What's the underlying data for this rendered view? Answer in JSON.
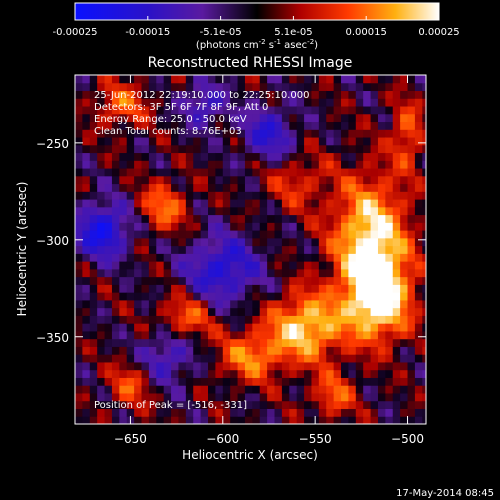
{
  "chart_data": {
    "type": "heatmap",
    "title": "Reconstructed RHESSI Image",
    "colorbar": {
      "ticks": [
        "-0.00025",
        "-0.00015",
        "-5.1e-05",
        "5.1e-05",
        "0.00015",
        "0.00025"
      ],
      "label_main": "(photons cm",
      "label_exp1": "-2",
      "label_mid": " s",
      "label_exp2": "-1",
      "label_end": " asec",
      "label_exp3": "-2",
      "label_close": ")",
      "range": [
        -0.00025,
        0.00025
      ],
      "colors": [
        "#1a1aff",
        "#2a10cc",
        "#5a1aa8",
        "#000000",
        "#c80000",
        "#ff6a00",
        "#ffd020",
        "#ffffff"
      ]
    },
    "xlabel": "Heliocentric X (arcsec)",
    "ylabel": "Heliocentric Y (arcsec)",
    "xlim": [
      -680,
      -490
    ],
    "ylim": [
      -395,
      -215
    ],
    "xticks": [
      {
        "value": -650,
        "label": "−650"
      },
      {
        "value": -600,
        "label": "−600"
      },
      {
        "value": -550,
        "label": "−550"
      },
      {
        "value": -500,
        "label": "−500"
      }
    ],
    "yticks": [
      {
        "value": -250,
        "label": "−250"
      },
      {
        "value": -300,
        "label": "−300"
      },
      {
        "value": -350,
        "label": "−350"
      }
    ],
    "annotations": [
      "25-Jun-2012 22:19:10.000 to 22:25:10.000",
      "Detectors: 3F 5F 6F 7F 8F 9F, Att 0",
      "Energy Range: 25.0 - 50.0 keV",
      "Clean    Total counts: 8.76E+03"
    ],
    "peak_label": "Position of Peak = [-516, -331]",
    "peak": [
      -516,
      -331
    ],
    "sources": [
      {
        "x": -520,
        "y": -300,
        "amp": 1.0,
        "sx": 14,
        "sy": 22
      },
      {
        "x": -516,
        "y": -331,
        "amp": 1.0,
        "sx": 12,
        "sy": 14
      },
      {
        "x": -555,
        "y": -345,
        "amp": 0.9,
        "sx": 14,
        "sy": 12
      },
      {
        "x": -585,
        "y": -360,
        "amp": 0.6,
        "sx": 12,
        "sy": 9
      },
      {
        "x": -632,
        "y": -283,
        "amp": 0.55,
        "sx": 9,
        "sy": 9
      },
      {
        "x": -655,
        "y": -230,
        "amp": 0.5,
        "sx": 10,
        "sy": 8
      },
      {
        "x": -620,
        "y": -340,
        "amp": 0.55,
        "sx": 10,
        "sy": 8
      },
      {
        "x": -650,
        "y": -375,
        "amp": 0.45,
        "sx": 8,
        "sy": 8
      },
      {
        "x": -500,
        "y": -245,
        "amp": 0.5,
        "sx": 6,
        "sy": 12
      },
      {
        "x": -560,
        "y": -270,
        "amp": 0.35,
        "sx": 12,
        "sy": 10
      },
      {
        "x": -540,
        "y": -380,
        "amp": 0.5,
        "sx": 8,
        "sy": 8
      }
    ],
    "negatives": [
      {
        "x": -665,
        "y": -295,
        "amp": -0.85,
        "sx": 10,
        "sy": 10
      },
      {
        "x": -600,
        "y": -315,
        "amp": -0.7,
        "sx": 14,
        "sy": 12
      },
      {
        "x": -575,
        "y": -245,
        "amp": -0.6,
        "sx": 10,
        "sy": 10
      },
      {
        "x": -610,
        "y": -230,
        "amp": -0.55,
        "sx": 8,
        "sy": 8
      },
      {
        "x": -630,
        "y": -360,
        "amp": -0.5,
        "sx": 10,
        "sy": 10
      }
    ]
  },
  "footer": {
    "timestamp": "17-May-2014 08:45"
  }
}
